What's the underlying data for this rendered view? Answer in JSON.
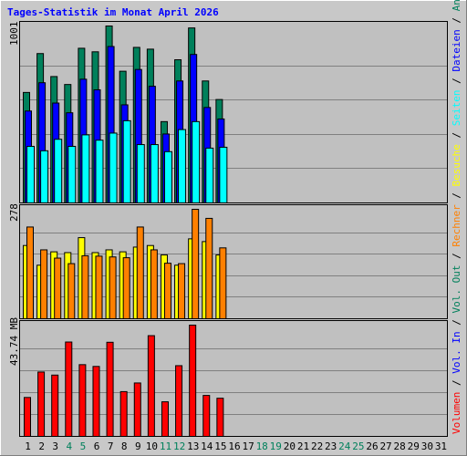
{
  "title": "Tages-Statistik im Monat April 2026",
  "colors": {
    "anfragen": "#00805b",
    "dateien": "#0000ff",
    "seiten": "#00ffff",
    "besuche": "#ffff00",
    "rechner": "#ff8000",
    "volumen": "#ff0000",
    "title": "#0000ff",
    "weekend": "#00805b"
  },
  "chart_data": [
    {
      "type": "bar",
      "ylabel": "1001",
      "x": [
        "1",
        "2",
        "3",
        "4",
        "5",
        "6",
        "7",
        "8",
        "9",
        "10",
        "11",
        "12",
        "13",
        "14",
        "15",
        "16",
        "17",
        "18",
        "19",
        "20",
        "21",
        "22",
        "23",
        "24",
        "25",
        "26",
        "27",
        "28",
        "29",
        "30",
        "31"
      ],
      "ylim": [
        0,
        1001
      ],
      "series": [
        {
          "name": "Anfragen",
          "values": [
            625,
            845,
            715,
            670,
            875,
            855,
            1001,
            745,
            880,
            870,
            460,
            810,
            990,
            690,
            585,
            0,
            0,
            0,
            0,
            0,
            0,
            0,
            0,
            0,
            0,
            0,
            0,
            0,
            0,
            0,
            0
          ]
        },
        {
          "name": "Dateien",
          "values": [
            520,
            680,
            565,
            510,
            700,
            640,
            885,
            555,
            755,
            660,
            390,
            690,
            840,
            540,
            475,
            0,
            0,
            0,
            0,
            0,
            0,
            0,
            0,
            0,
            0,
            0,
            0,
            0,
            0,
            0,
            0
          ]
        },
        {
          "name": "Seiten",
          "values": [
            320,
            295,
            360,
            320,
            385,
            355,
            395,
            465,
            330,
            330,
            290,
            415,
            460,
            310,
            315,
            0,
            0,
            0,
            0,
            0,
            0,
            0,
            0,
            0,
            0,
            0,
            0,
            0,
            0,
            0,
            0
          ]
        }
      ]
    },
    {
      "type": "bar",
      "ylabel": "278",
      "x": [
        "1",
        "2",
        "3",
        "4",
        "5",
        "6",
        "7",
        "8",
        "9",
        "10",
        "11",
        "12",
        "13",
        "14",
        "15",
        "16",
        "17",
        "18",
        "19",
        "20",
        "21",
        "22",
        "23",
        "24",
        "25",
        "26",
        "27",
        "28",
        "29",
        "30",
        "31"
      ],
      "ylim": [
        0,
        278
      ],
      "series": [
        {
          "name": "Besuche",
          "values": [
            186,
            136,
            170,
            168,
            206,
            168,
            175,
            170,
            182,
            186,
            162,
            136,
            203,
            196,
            162,
            0,
            0,
            0,
            0,
            0,
            0,
            0,
            0,
            0,
            0,
            0,
            0,
            0,
            0,
            0,
            0
          ]
        },
        {
          "name": "Rechner",
          "values": [
            233,
            175,
            154,
            140,
            160,
            159,
            157,
            155,
            233,
            175,
            141,
            140,
            278,
            255,
            180,
            0,
            0,
            0,
            0,
            0,
            0,
            0,
            0,
            0,
            0,
            0,
            0,
            0,
            0,
            0,
            0
          ]
        }
      ]
    },
    {
      "type": "bar",
      "ylabel": "43.74 MB",
      "x": [
        "1",
        "2",
        "3",
        "4",
        "5",
        "6",
        "7",
        "8",
        "9",
        "10",
        "11",
        "12",
        "13",
        "14",
        "15",
        "16",
        "17",
        "18",
        "19",
        "20",
        "21",
        "22",
        "23",
        "24",
        "25",
        "26",
        "27",
        "28",
        "29",
        "30",
        "31"
      ],
      "ylim": [
        0,
        43.74
      ],
      "series": [
        {
          "name": "Volumen",
          "values": [
            15.3,
            25.3,
            24.1,
            37.1,
            28.2,
            27.5,
            37.0,
            17.6,
            21.0,
            39.6,
            13.6,
            27.8,
            43.74,
            16.1,
            15.0,
            0,
            0,
            0,
            0,
            0,
            0,
            0,
            0,
            0,
            0,
            0,
            0,
            0,
            0,
            0,
            0
          ]
        }
      ]
    }
  ],
  "x_label_colors": [
    "#000000",
    "#000000",
    "#000000",
    "#00805b",
    "#00805b",
    "#000000",
    "#000000",
    "#000000",
    "#000000",
    "#000000",
    "#00805b",
    "#00805b",
    "#000000",
    "#000000",
    "#000000",
    "#000000",
    "#000000",
    "#00805b",
    "#00805b",
    "#000000",
    "#000000",
    "#000000",
    "#000000",
    "#00805b",
    "#00805b",
    "#000000",
    "#000000",
    "#000000",
    "#000000",
    "#000000",
    "#000000"
  ],
  "right_legend": [
    {
      "text": "Volumen",
      "color": "#ff0000"
    },
    {
      "text": " / ",
      "color": "#000000"
    },
    {
      "text": "Vol. In",
      "color": "#0000ff"
    },
    {
      "text": " / ",
      "color": "#000000"
    },
    {
      "text": "Vol. Out",
      "color": "#00805b"
    },
    {
      "text": " / ",
      "color": "#000000"
    },
    {
      "text": "Rechner",
      "color": "#ff8000"
    },
    {
      "text": " / ",
      "color": "#000000"
    },
    {
      "text": "Besuche",
      "color": "#ffff00"
    },
    {
      "text": " / ",
      "color": "#000000"
    },
    {
      "text": "Seiten",
      "color": "#00ffff"
    },
    {
      "text": " / ",
      "color": "#000000"
    },
    {
      "text": "Dateien",
      "color": "#0000ff"
    },
    {
      "text": " / ",
      "color": "#000000"
    },
    {
      "text": "Anfragen",
      "color": "#00805b"
    }
  ]
}
